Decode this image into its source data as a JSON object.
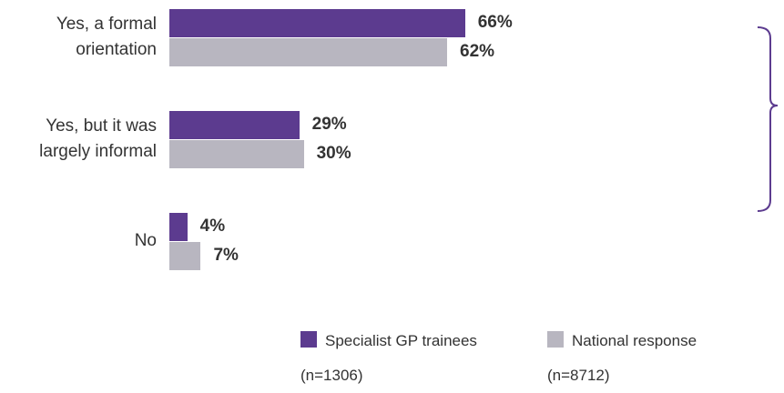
{
  "chart_data": {
    "type": "bar",
    "orientation": "horizontal",
    "categories": [
      "Yes, a formal orientation",
      "Yes, but it was largely informal",
      "No"
    ],
    "series": [
      {
        "name": "Specialist GP trainees (n=1306)",
        "color": "#5c3b8f",
        "values": [
          66,
          29,
          4
        ],
        "value_labels": [
          "66%",
          "29%",
          "4%"
        ]
      },
      {
        "name": "National response (n=8712)",
        "color": "#b8b6c0",
        "values": [
          62,
          30,
          7
        ],
        "value_labels": [
          "62%",
          "30%",
          "7%"
        ]
      }
    ]
  }
}
